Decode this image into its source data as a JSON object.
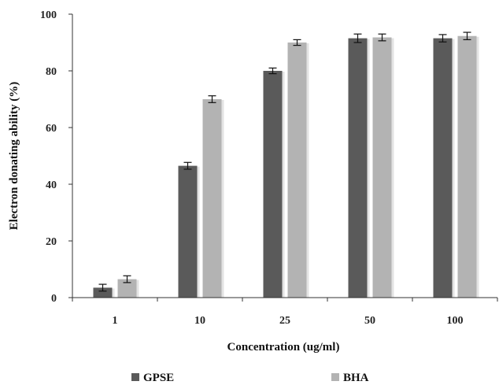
{
  "chart_data": {
    "type": "bar",
    "categories": [
      "1",
      "10",
      "25",
      "50",
      "100"
    ],
    "series": [
      {
        "name": "GPSE",
        "values": [
          3.5,
          46.5,
          80.0,
          91.5,
          91.5
        ],
        "errors": [
          1.2,
          1.2,
          1.0,
          1.5,
          1.3
        ],
        "color": "#5a5a5a"
      },
      {
        "name": "BHA",
        "values": [
          6.5,
          70.0,
          90.0,
          91.8,
          92.3
        ],
        "errors": [
          1.2,
          1.2,
          1.0,
          1.2,
          1.3
        ],
        "color": "#b3b3b3"
      }
    ],
    "xlabel": "Concentration (ug/ml)",
    "ylabel": "Electron donating ability (%)",
    "ylim": [
      0,
      100
    ],
    "yticks": [
      0,
      20,
      40,
      60,
      80,
      100
    ],
    "grid": false,
    "legend_position": "bottom"
  }
}
